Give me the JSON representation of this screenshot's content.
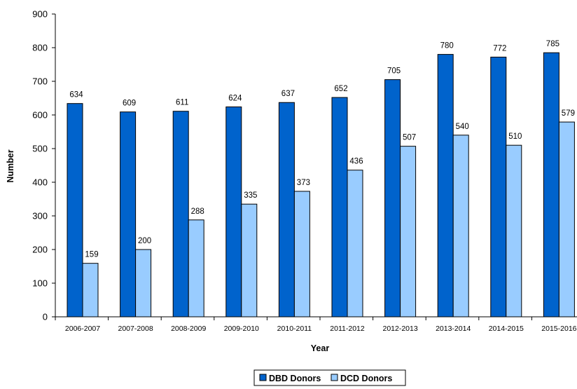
{
  "chart_data": {
    "type": "bar",
    "xlabel": "Year",
    "ylabel": "Number",
    "ylim": [
      0,
      900
    ],
    "ytick_step": 100,
    "grid": false,
    "legend_position": "bottom",
    "categories": [
      "2006-2007",
      "2007-2008",
      "2008-2009",
      "2009-2010",
      "2010-2011",
      "2011-2012",
      "2012-2013",
      "2013-2014",
      "2014-2015",
      "2015-2016"
    ],
    "series": [
      {
        "name": "DBD Donors",
        "color": "#0063cc",
        "values": [
          634,
          609,
          611,
          624,
          637,
          652,
          705,
          780,
          772,
          785
        ]
      },
      {
        "name": "DCD Donors",
        "color": "#99ccff",
        "values": [
          159,
          200,
          288,
          335,
          373,
          436,
          507,
          540,
          510,
          579
        ]
      }
    ]
  }
}
